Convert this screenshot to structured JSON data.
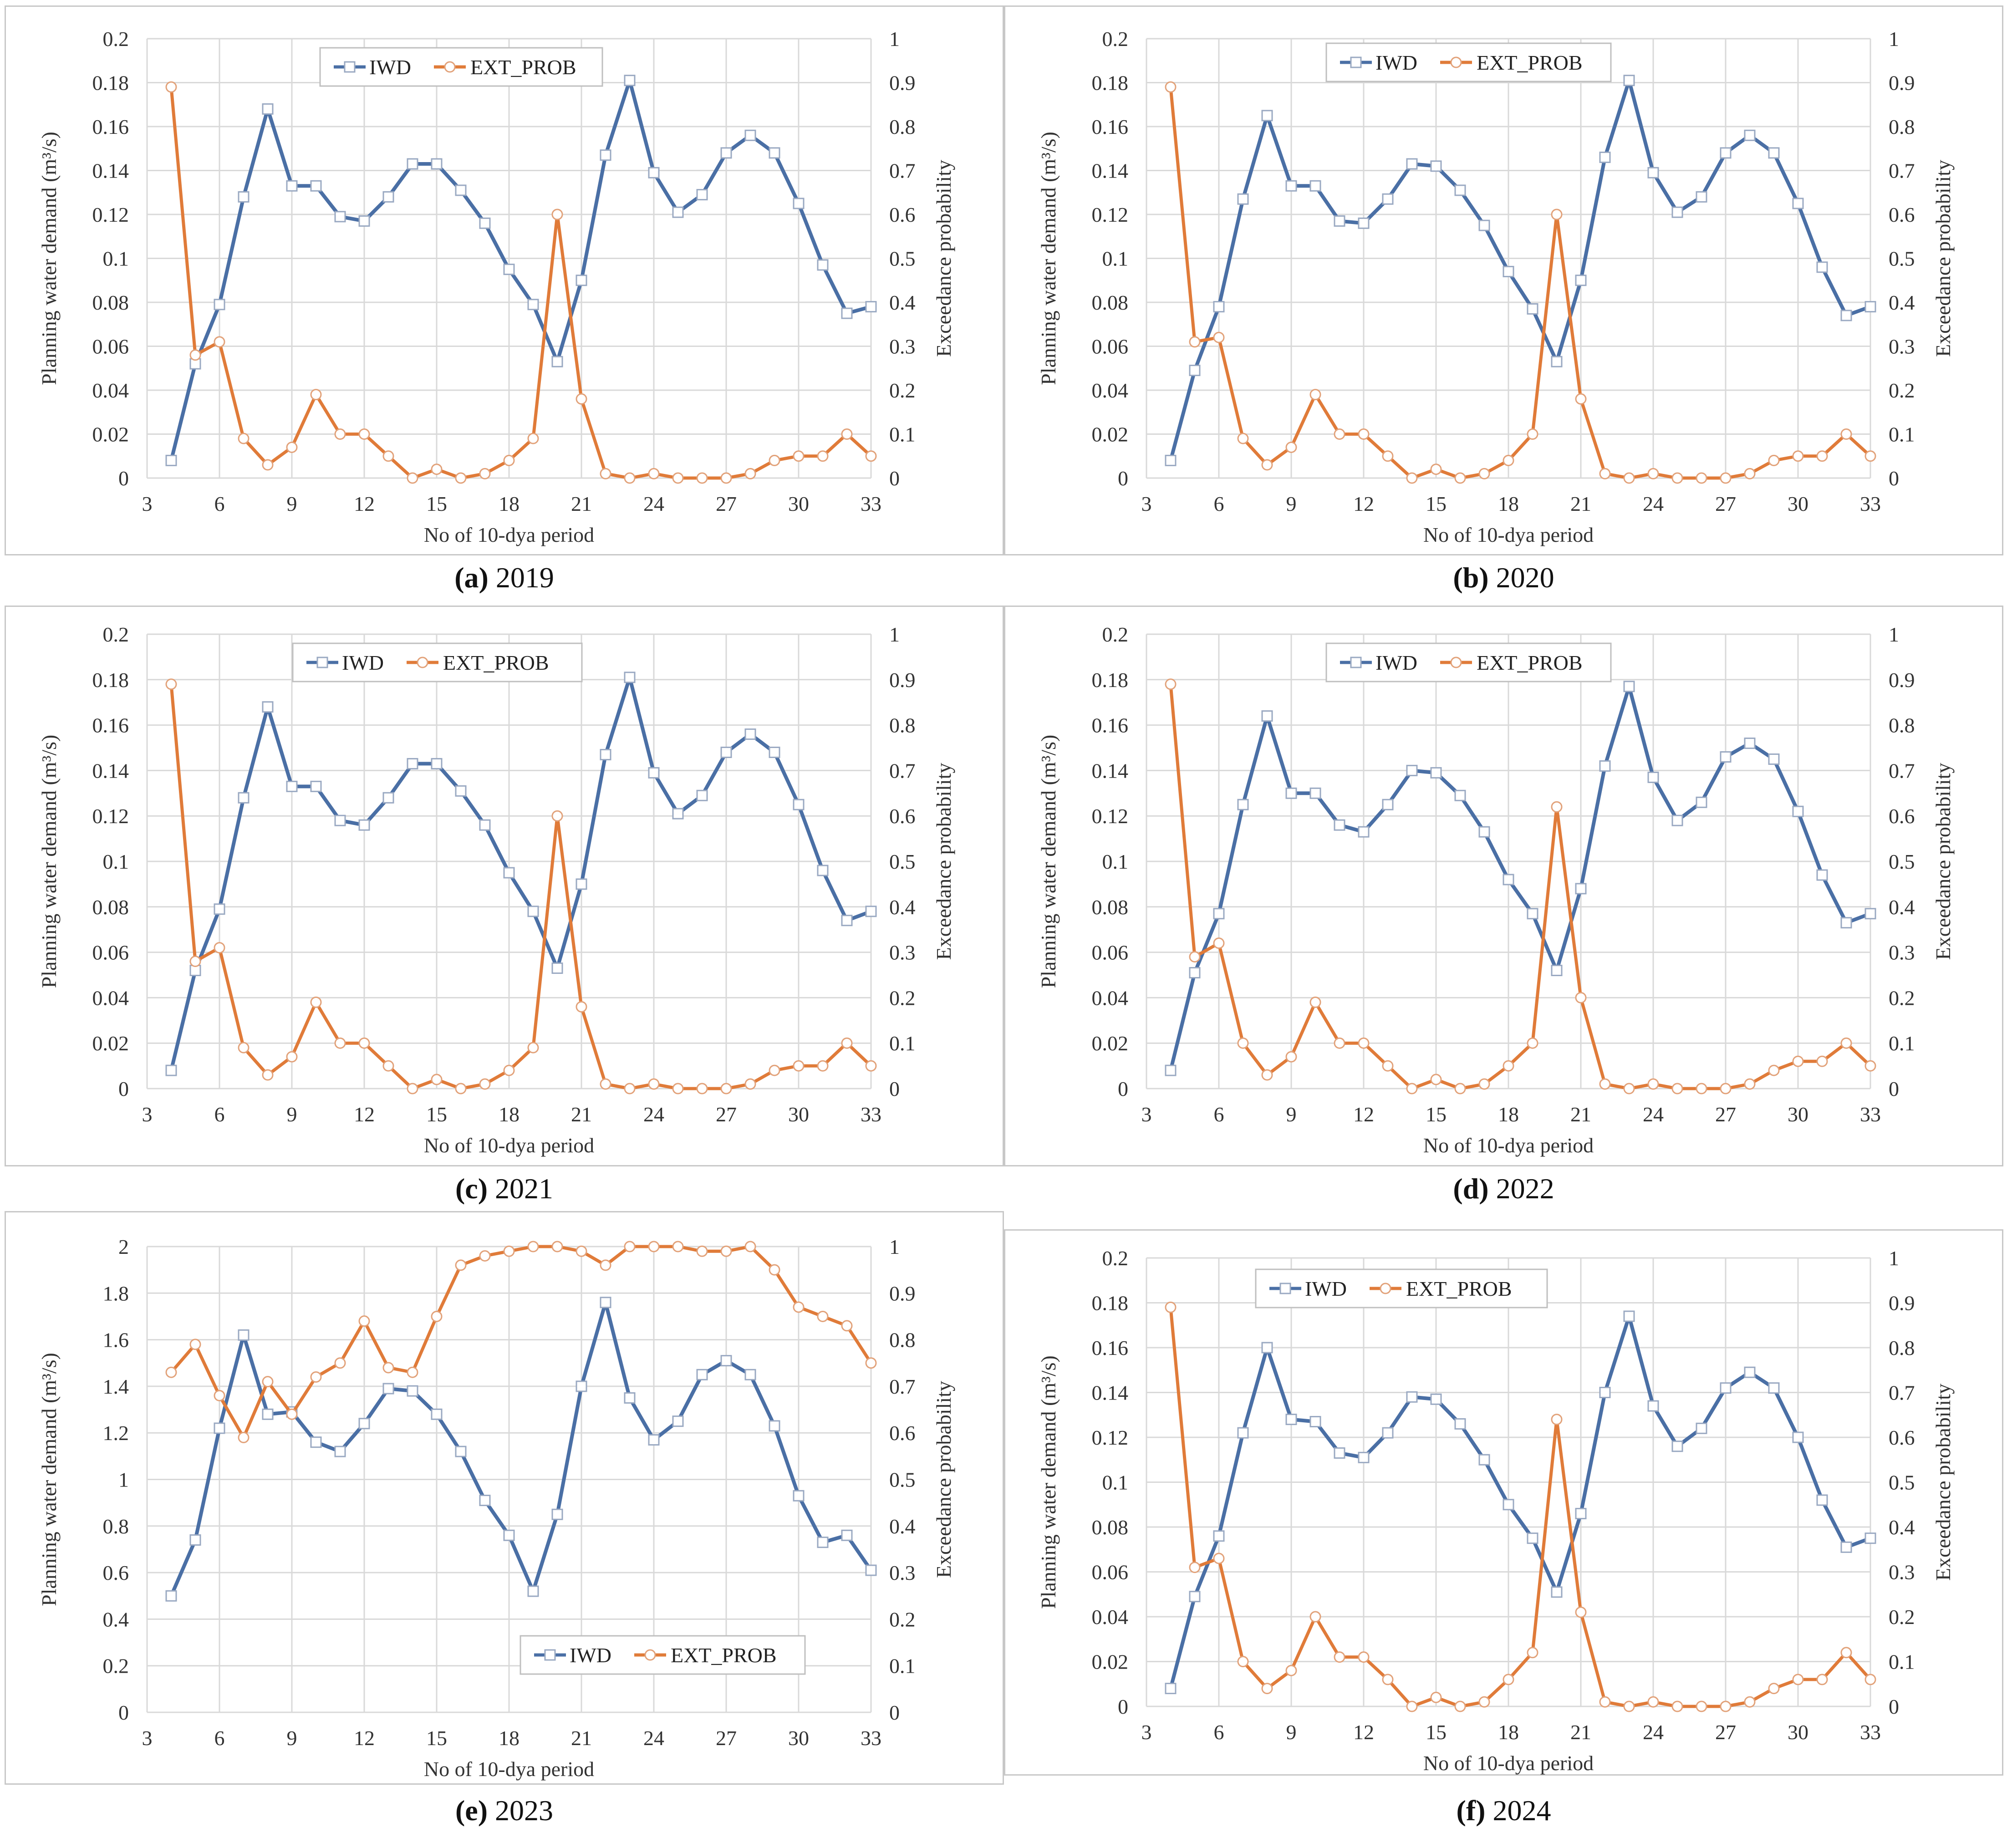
{
  "colors": {
    "iwd": "#4a6fa5",
    "ext": "#e07b39",
    "grid": "#d9d9d9"
  },
  "common": {
    "xlabel": "No of 10-dya period",
    "ylabel_left": "Planning water demand (m³/s)",
    "ylabel_right": "Exceedance probability",
    "x_ticks": [
      "3",
      "6",
      "9",
      "12",
      "15",
      "18",
      "21",
      "24",
      "27",
      "30",
      "33"
    ],
    "right_ticks": [
      "0",
      "0.1",
      "0.2",
      "0.3",
      "0.4",
      "0.5",
      "0.6",
      "0.7",
      "0.8",
      "0.9",
      "1"
    ],
    "legend_iwd": "IWD",
    "legend_ext": "EXT_PROB"
  },
  "chart_data": [
    {
      "type": "line",
      "caption_letter": "(a)",
      "caption_year": " 2019",
      "x": [
        4,
        5,
        6,
        7,
        8,
        9,
        10,
        11,
        12,
        13,
        14,
        15,
        16,
        17,
        18,
        19,
        20,
        21,
        22,
        23,
        24,
        25,
        26,
        27,
        28,
        29,
        30,
        31,
        32,
        33
      ],
      "left_ticks": [
        "0",
        "0.02",
        "0.04",
        "0.06",
        "0.08",
        "0.1",
        "0.12",
        "0.14",
        "0.16",
        "0.18",
        "0.2"
      ],
      "ylim_left": [
        0,
        0.2
      ],
      "ylim_right": [
        0,
        1
      ],
      "series": [
        {
          "name": "IWD",
          "axis": "left",
          "values": [
            0.008,
            0.052,
            0.079,
            0.128,
            0.168,
            0.133,
            0.133,
            0.119,
            0.117,
            0.128,
            0.143,
            0.143,
            0.131,
            0.116,
            0.095,
            0.079,
            0.053,
            0.09,
            0.147,
            0.181,
            0.139,
            0.121,
            0.129,
            0.148,
            0.156,
            0.148,
            0.125,
            0.097,
            0.075,
            0.078
          ]
        },
        {
          "name": "EXT_PROB",
          "axis": "right",
          "values": [
            0.89,
            0.28,
            0.31,
            0.09,
            0.03,
            0.07,
            0.19,
            0.1,
            0.1,
            0.05,
            0.0,
            0.02,
            0.0,
            0.01,
            0.04,
            0.09,
            0.6,
            0.18,
            0.01,
            0.0,
            0.01,
            0.0,
            0.0,
            0.0,
            0.01,
            0.04,
            0.05,
            0.05,
            0.1,
            0.05
          ]
        }
      ]
    },
    {
      "type": "line",
      "caption_letter": "(b)",
      "caption_year": " 2020",
      "x": [
        4,
        5,
        6,
        7,
        8,
        9,
        10,
        11,
        12,
        13,
        14,
        15,
        16,
        17,
        18,
        19,
        20,
        21,
        22,
        23,
        24,
        25,
        26,
        27,
        28,
        29,
        30,
        31,
        32,
        33
      ],
      "left_ticks": [
        "0",
        "0.02",
        "0.04",
        "0.06",
        "0.08",
        "0.1",
        "0.12",
        "0.14",
        "0.16",
        "0.18",
        "0.2"
      ],
      "ylim_left": [
        0,
        0.2
      ],
      "ylim_right": [
        0,
        1
      ],
      "series": [
        {
          "name": "IWD",
          "axis": "left",
          "values": [
            0.008,
            0.049,
            0.078,
            0.127,
            0.165,
            0.133,
            0.133,
            0.117,
            0.116,
            0.127,
            0.143,
            0.142,
            0.131,
            0.115,
            0.094,
            0.077,
            0.053,
            0.09,
            0.146,
            0.181,
            0.139,
            0.121,
            0.128,
            0.148,
            0.156,
            0.148,
            0.125,
            0.096,
            0.074,
            0.078
          ]
        },
        {
          "name": "EXT_PROB",
          "axis": "right",
          "values": [
            0.89,
            0.31,
            0.32,
            0.09,
            0.03,
            0.07,
            0.19,
            0.1,
            0.1,
            0.05,
            0.0,
            0.02,
            0.0,
            0.01,
            0.04,
            0.1,
            0.6,
            0.18,
            0.01,
            0.0,
            0.01,
            0.0,
            0.0,
            0.0,
            0.01,
            0.04,
            0.05,
            0.05,
            0.1,
            0.05
          ]
        }
      ]
    },
    {
      "type": "line",
      "caption_letter": "(c)",
      "caption_year": " 2021",
      "x": [
        4,
        5,
        6,
        7,
        8,
        9,
        10,
        11,
        12,
        13,
        14,
        15,
        16,
        17,
        18,
        19,
        20,
        21,
        22,
        23,
        24,
        25,
        26,
        27,
        28,
        29,
        30,
        31,
        32,
        33
      ],
      "left_ticks": [
        "0",
        "0.02",
        "0.04",
        "0.06",
        "0.08",
        "0.1",
        "0.12",
        "0.14",
        "0.16",
        "0.18",
        "0.2"
      ],
      "ylim_left": [
        0,
        0.2
      ],
      "ylim_right": [
        0,
        1
      ],
      "series": [
        {
          "name": "IWD",
          "axis": "left",
          "values": [
            0.008,
            0.052,
            0.079,
            0.128,
            0.168,
            0.133,
            0.133,
            0.118,
            0.116,
            0.128,
            0.143,
            0.143,
            0.131,
            0.116,
            0.095,
            0.078,
            0.053,
            0.09,
            0.147,
            0.181,
            0.139,
            0.121,
            0.129,
            0.148,
            0.156,
            0.148,
            0.125,
            0.096,
            0.074,
            0.078
          ]
        },
        {
          "name": "EXT_PROB",
          "axis": "right",
          "values": [
            0.89,
            0.28,
            0.31,
            0.09,
            0.03,
            0.07,
            0.19,
            0.1,
            0.1,
            0.05,
            0.0,
            0.02,
            0.0,
            0.01,
            0.04,
            0.09,
            0.6,
            0.18,
            0.01,
            0.0,
            0.01,
            0.0,
            0.0,
            0.0,
            0.01,
            0.04,
            0.05,
            0.05,
            0.1,
            0.05
          ]
        }
      ]
    },
    {
      "type": "line",
      "caption_letter": "(d)",
      "caption_year": " 2022",
      "x": [
        4,
        5,
        6,
        7,
        8,
        9,
        10,
        11,
        12,
        13,
        14,
        15,
        16,
        17,
        18,
        19,
        20,
        21,
        22,
        23,
        24,
        25,
        26,
        27,
        28,
        29,
        30,
        31,
        32,
        33
      ],
      "left_ticks": [
        "0",
        "0.02",
        "0.04",
        "0.06",
        "0.08",
        "0.1",
        "0.12",
        "0.14",
        "0.16",
        "0.18",
        "0.2"
      ],
      "ylim_left": [
        0,
        0.2
      ],
      "ylim_right": [
        0,
        1
      ],
      "series": [
        {
          "name": "IWD",
          "axis": "left",
          "values": [
            0.008,
            0.051,
            0.077,
            0.125,
            0.164,
            0.13,
            0.13,
            0.116,
            0.113,
            0.125,
            0.14,
            0.139,
            0.129,
            0.113,
            0.092,
            0.077,
            0.052,
            0.088,
            0.142,
            0.177,
            0.137,
            0.118,
            0.126,
            0.146,
            0.152,
            0.145,
            0.122,
            0.094,
            0.073,
            0.077
          ]
        },
        {
          "name": "EXT_PROB",
          "axis": "right",
          "values": [
            0.89,
            0.29,
            0.32,
            0.1,
            0.03,
            0.07,
            0.19,
            0.1,
            0.1,
            0.05,
            0.0,
            0.02,
            0.0,
            0.01,
            0.05,
            0.1,
            0.62,
            0.2,
            0.01,
            0.0,
            0.01,
            0.0,
            0.0,
            0.0,
            0.01,
            0.04,
            0.06,
            0.06,
            0.1,
            0.05
          ]
        }
      ]
    },
    {
      "type": "line",
      "caption_letter": "(e)",
      "caption_year": " 2023",
      "x": [
        4,
        5,
        6,
        7,
        8,
        9,
        10,
        11,
        12,
        13,
        14,
        15,
        16,
        17,
        18,
        19,
        20,
        21,
        22,
        23,
        24,
        25,
        26,
        27,
        28,
        29,
        30,
        31,
        32,
        33
      ],
      "left_ticks": [
        "0",
        "0.2",
        "0.4",
        "0.6",
        "0.8",
        "1",
        "1.2",
        "1.4",
        "1.6",
        "1.8",
        "2"
      ],
      "ylim_left": [
        0,
        2
      ],
      "ylim_right": [
        0,
        1
      ],
      "series": [
        {
          "name": "IWD",
          "axis": "left",
          "values": [
            0.5,
            0.74,
            1.22,
            1.62,
            1.28,
            1.29,
            1.16,
            1.12,
            1.24,
            1.39,
            1.38,
            1.28,
            1.12,
            0.91,
            0.76,
            0.52,
            0.85,
            1.4,
            1.76,
            1.35,
            1.17,
            1.25,
            1.45,
            1.51,
            1.45,
            1.23,
            0.93,
            0.73,
            0.76,
            0.61
          ]
        },
        {
          "name": "EXT_PROB",
          "axis": "right",
          "values": [
            0.73,
            0.79,
            0.68,
            0.59,
            0.71,
            0.64,
            0.72,
            0.75,
            0.84,
            0.74,
            0.73,
            0.85,
            0.96,
            0.98,
            0.99,
            1.0,
            1.0,
            0.99,
            0.96,
            1.0,
            1.0,
            1.0,
            0.99,
            0.99,
            1.0,
            0.95,
            0.87,
            0.85,
            0.83,
            0.75
          ]
        }
      ]
    },
    {
      "type": "line",
      "caption_letter": "(f)",
      "caption_year": " 2024",
      "x": [
        4,
        5,
        6,
        7,
        8,
        9,
        10,
        11,
        12,
        13,
        14,
        15,
        16,
        17,
        18,
        19,
        20,
        21,
        22,
        23,
        24,
        25,
        26,
        27,
        28,
        29,
        30,
        31,
        32,
        33
      ],
      "left_ticks": [
        "0",
        "0.02",
        "0.04",
        "0.06",
        "0.08",
        "0.1",
        "0.12",
        "0.14",
        "0.16",
        "0.18",
        "0.2"
      ],
      "ylim_left": [
        0,
        0.2
      ],
      "ylim_right": [
        0,
        1
      ],
      "series": [
        {
          "name": "IWD",
          "axis": "left",
          "values": [
            0.008,
            0.049,
            0.076,
            0.122,
            0.16,
            0.128,
            0.127,
            0.113,
            0.111,
            0.122,
            0.138,
            0.137,
            0.126,
            0.11,
            0.09,
            0.075,
            0.051,
            0.086,
            0.14,
            0.174,
            0.134,
            0.116,
            0.124,
            0.142,
            0.149,
            0.142,
            0.12,
            0.092,
            0.071,
            0.075
          ]
        },
        {
          "name": "EXT_PROB",
          "axis": "right",
          "values": [
            0.89,
            0.31,
            0.33,
            0.1,
            0.04,
            0.08,
            0.2,
            0.11,
            0.11,
            0.06,
            0.0,
            0.02,
            0.0,
            0.01,
            0.06,
            0.12,
            0.64,
            0.21,
            0.01,
            0.0,
            0.01,
            0.0,
            0.0,
            0.0,
            0.01,
            0.04,
            0.06,
            0.06,
            0.12,
            0.06
          ]
        }
      ]
    }
  ]
}
